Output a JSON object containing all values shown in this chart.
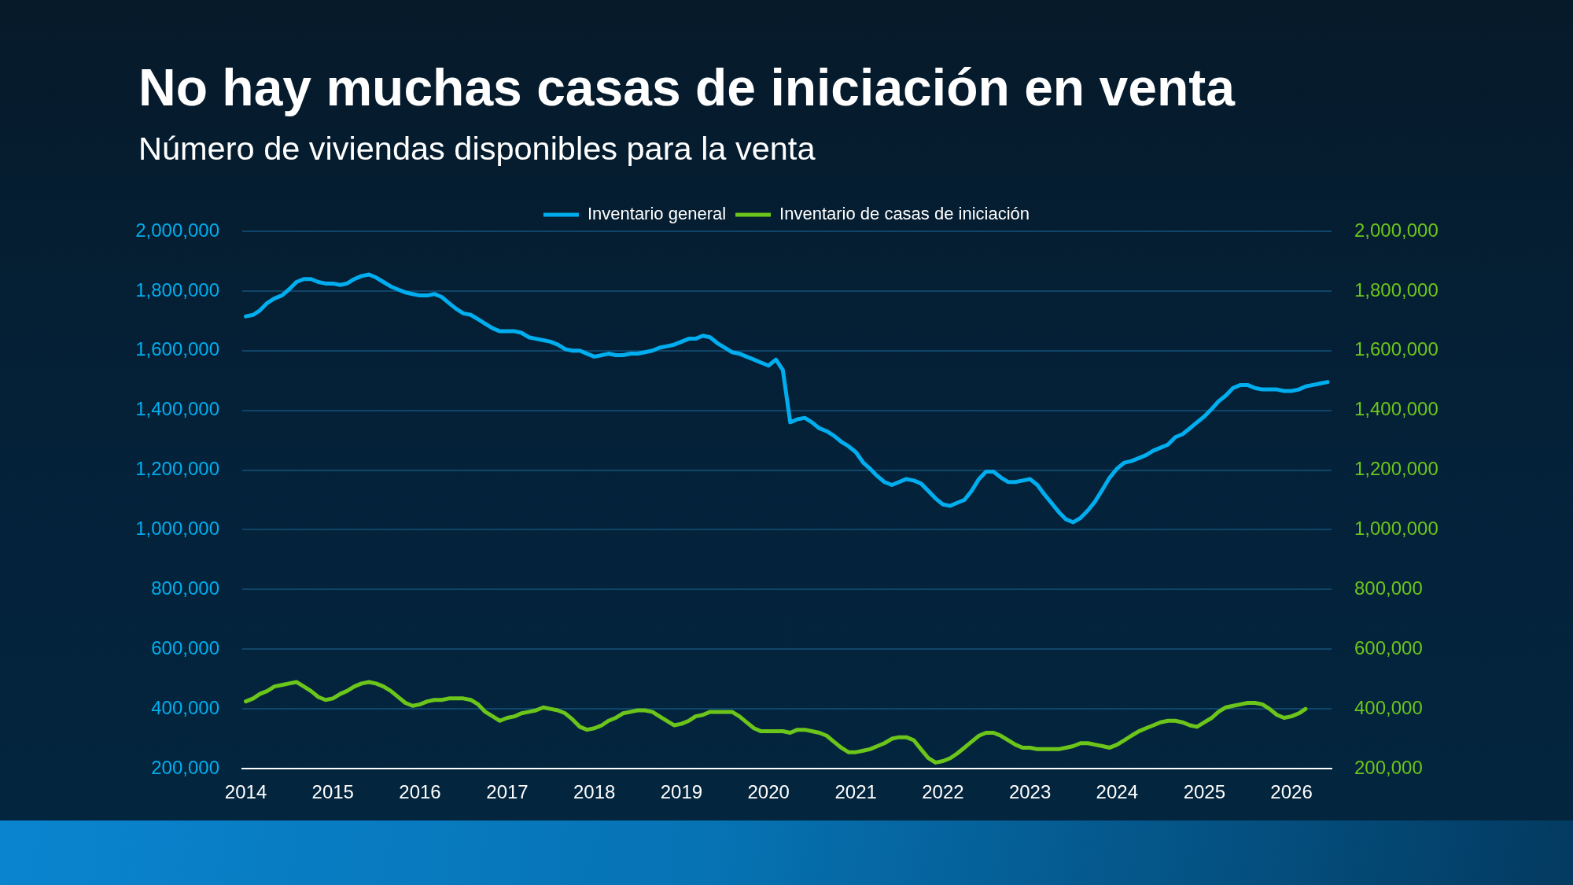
{
  "chart_data": {
    "type": "line",
    "title": "No hay muchas casas de iniciación en venta",
    "subtitle": "Número de viviendas disponibles para la venta",
    "x": [
      "2014-01",
      "2014-02",
      "2014-03",
      "2014-04",
      "2014-05",
      "2014-06",
      "2014-07",
      "2014-08",
      "2014-09",
      "2014-10",
      "2014-11",
      "2014-12",
      "2015-01",
      "2015-02",
      "2015-03",
      "2015-04",
      "2015-05",
      "2015-06",
      "2015-07",
      "2015-08",
      "2015-09",
      "2015-10",
      "2015-11",
      "2015-12",
      "2016-01",
      "2016-02",
      "2016-03",
      "2016-04",
      "2016-05",
      "2016-06",
      "2016-07",
      "2016-08",
      "2016-09",
      "2016-10",
      "2016-11",
      "2016-12",
      "2017-01",
      "2017-02",
      "2017-03",
      "2017-04",
      "2017-05",
      "2017-06",
      "2017-07",
      "2017-08",
      "2017-09",
      "2017-10",
      "2017-11",
      "2017-12",
      "2018-01",
      "2018-02",
      "2018-03",
      "2018-04",
      "2018-05",
      "2018-06",
      "2018-07",
      "2018-08",
      "2018-09",
      "2018-10",
      "2018-11",
      "2018-12",
      "2019-01",
      "2019-02",
      "2019-03",
      "2019-04",
      "2019-05",
      "2019-06",
      "2019-07",
      "2019-08",
      "2019-09",
      "2019-10",
      "2019-11",
      "2019-12",
      "2020-01",
      "2020-02",
      "2020-03",
      "2020-04",
      "2020-05",
      "2020-06",
      "2020-07",
      "2020-08",
      "2020-09",
      "2020-10",
      "2020-11",
      "2020-12",
      "2021-01",
      "2021-02",
      "2021-03",
      "2021-04",
      "2021-05",
      "2021-06",
      "2021-07",
      "2021-08",
      "2021-09",
      "2021-10",
      "2021-11",
      "2021-12",
      "2022-01",
      "2022-02",
      "2022-03",
      "2022-04",
      "2022-05",
      "2022-06",
      "2022-07",
      "2022-08",
      "2022-09",
      "2022-10",
      "2022-11",
      "2022-12",
      "2023-01",
      "2023-02",
      "2023-03",
      "2023-04",
      "2023-05",
      "2023-06",
      "2023-07",
      "2023-08",
      "2023-09",
      "2023-10",
      "2023-11",
      "2023-12",
      "2024-01",
      "2024-02",
      "2024-03",
      "2024-04",
      "2024-05",
      "2024-06",
      "2024-07",
      "2024-08",
      "2024-09",
      "2024-10",
      "2024-11",
      "2024-12",
      "2025-01",
      "2025-02",
      "2025-03",
      "2025-04",
      "2025-05",
      "2025-06",
      "2025-07",
      "2025-08",
      "2025-09",
      "2025-10",
      "2025-11",
      "2025-12",
      "2026-01",
      "2026-02",
      "2026-03",
      "2026-04",
      "2026-05",
      "2026-06"
    ],
    "series": [
      {
        "name": "Inventario general",
        "color": "#00aeef",
        "values": [
          1715000,
          1720000,
          1735000,
          1760000,
          1775000,
          1785000,
          1805000,
          1830000,
          1840000,
          1840000,
          1830000,
          1825000,
          1825000,
          1820000,
          1825000,
          1840000,
          1850000,
          1855000,
          1845000,
          1830000,
          1815000,
          1805000,
          1795000,
          1790000,
          1785000,
          1785000,
          1790000,
          1780000,
          1760000,
          1740000,
          1725000,
          1720000,
          1705000,
          1690000,
          1675000,
          1665000,
          1665000,
          1665000,
          1660000,
          1645000,
          1640000,
          1635000,
          1630000,
          1620000,
          1605000,
          1600000,
          1600000,
          1590000,
          1580000,
          1585000,
          1590000,
          1585000,
          1585000,
          1590000,
          1590000,
          1595000,
          1600000,
          1610000,
          1615000,
          1620000,
          1630000,
          1640000,
          1640000,
          1650000,
          1645000,
          1625000,
          1610000,
          1595000,
          1590000,
          1580000,
          1570000,
          1560000,
          1550000,
          1570000,
          1535000,
          1360000,
          1370000,
          1375000,
          1360000,
          1340000,
          1330000,
          1315000,
          1295000,
          1280000,
          1260000,
          1225000,
          1205000,
          1180000,
          1160000,
          1150000,
          1160000,
          1170000,
          1165000,
          1155000,
          1130000,
          1105000,
          1085000,
          1080000,
          1090000,
          1100000,
          1130000,
          1170000,
          1195000,
          1195000,
          1175000,
          1160000,
          1160000,
          1165000,
          1170000,
          1150000,
          1120000,
          1090000,
          1060000,
          1035000,
          1025000,
          1040000,
          1065000,
          1095000,
          1135000,
          1175000,
          1205000,
          1225000,
          1230000,
          1240000,
          1250000,
          1265000,
          1275000,
          1285000,
          1310000,
          1320000,
          1340000,
          1360000,
          1380000,
          1405000,
          1430000,
          1450000,
          1475000,
          1485000,
          1485000,
          1475000,
          1470000,
          1470000,
          1470000,
          1465000,
          1465000,
          1470000,
          1480000,
          1485000,
          1490000,
          1495000
        ]
      },
      {
        "name": "Inventario de casas de iniciación",
        "color": "#6cc51a",
        "axis": "y2",
        "values": [
          425000,
          435000,
          450000,
          460000,
          475000,
          480000,
          485000,
          490000,
          475000,
          460000,
          440000,
          430000,
          435000,
          450000,
          460000,
          475000,
          485000,
          490000,
          485000,
          475000,
          460000,
          440000,
          420000,
          410000,
          415000,
          425000,
          430000,
          430000,
          435000,
          435000,
          435000,
          430000,
          415000,
          390000,
          375000,
          360000,
          370000,
          375000,
          385000,
          390000,
          395000,
          405000,
          400000,
          395000,
          385000,
          365000,
          340000,
          330000,
          335000,
          345000,
          360000,
          370000,
          385000,
          390000,
          395000,
          395000,
          390000,
          375000,
          360000,
          345000,
          350000,
          360000,
          375000,
          380000,
          390000,
          390000,
          390000,
          390000,
          375000,
          355000,
          335000,
          325000,
          325000,
          325000,
          325000,
          320000,
          330000,
          330000,
          325000,
          320000,
          310000,
          290000,
          270000,
          255000,
          255000,
          260000,
          265000,
          275000,
          285000,
          300000,
          305000,
          305000,
          295000,
          265000,
          235000,
          220000,
          225000,
          235000,
          250000,
          270000,
          290000,
          310000,
          320000,
          320000,
          310000,
          295000,
          280000,
          270000,
          270000,
          265000,
          265000,
          265000,
          265000,
          270000,
          275000,
          285000,
          285000,
          280000,
          275000,
          270000,
          280000,
          295000,
          310000,
          325000,
          335000,
          345000,
          355000,
          360000,
          360000,
          355000,
          345000,
          340000,
          355000,
          370000,
          390000,
          405000,
          410000,
          415000,
          420000,
          420000,
          415000,
          400000,
          380000,
          370000,
          375000,
          385000,
          400000,
          null,
          null,
          null
        ]
      }
    ],
    "xlim": [
      "2013-12-17",
      "2026-06-18"
    ],
    "xticks": [
      "2014",
      "2015",
      "2016",
      "2017",
      "2018",
      "2019",
      "2020",
      "2021",
      "2022",
      "2023",
      "2024",
      "2025",
      "2026"
    ],
    "ylim": [
      200000,
      2000000
    ],
    "yticks": [
      {
        "value": 200000,
        "label": "200,000"
      },
      {
        "value": 400000,
        "label": "400,000"
      },
      {
        "value": 600000,
        "label": "600,000"
      },
      {
        "value": 800000,
        "label": "800,000"
      },
      {
        "value": 1000000,
        "label": "1,000,000"
      },
      {
        "value": 1200000,
        "label": "1,200,000"
      },
      {
        "value": 1400000,
        "label": "1,400,000"
      },
      {
        "value": 1600000,
        "label": "1,600,000"
      },
      {
        "value": 1800000,
        "label": "1,800,000"
      },
      {
        "value": 2000000,
        "label": "2,000,000"
      }
    ],
    "y2lim": [
      200000,
      2000000
    ],
    "y2ticks": [
      {
        "value": 200000,
        "label": "200,000"
      },
      {
        "value": 400000,
        "label": "400,000"
      },
      {
        "value": 600000,
        "label": "600,000"
      },
      {
        "value": 800000,
        "label": "800,000"
      },
      {
        "value": 1000000,
        "label": "1,000,000"
      },
      {
        "value": 1200000,
        "label": "1,200,000"
      },
      {
        "value": 1400000,
        "label": "1,400,000"
      },
      {
        "value": 1600000,
        "label": "1,600,000"
      },
      {
        "value": 1800000,
        "label": "1,800,000"
      },
      {
        "value": 2000000,
        "label": "2,000,000"
      }
    ],
    "grid": "y",
    "legend": "top",
    "marker": "none",
    "line_style": "solid"
  }
}
